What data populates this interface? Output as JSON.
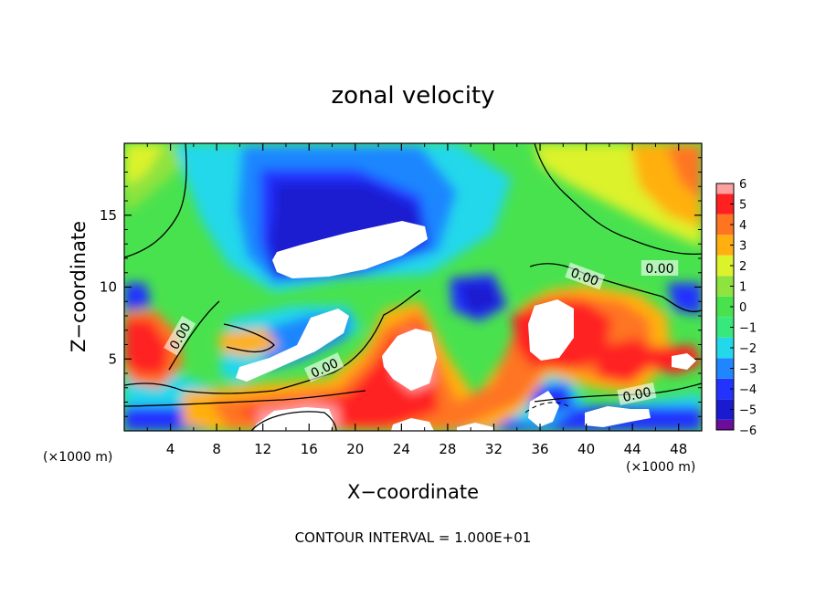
{
  "chart_data": {
    "type": "heatmap",
    "title": "zonal velocity",
    "xlabel": "X−coordinate",
    "ylabel": "Z−coordinate",
    "x_unit_left": "(×1000 m)",
    "x_unit_right": "(×1000 m)",
    "xlim": [
      0,
      50
    ],
    "ylim": [
      0,
      20
    ],
    "x_ticks": [
      4,
      8,
      12,
      16,
      20,
      24,
      28,
      32,
      36,
      40,
      44,
      48
    ],
    "y_ticks": [
      5,
      10,
      15
    ],
    "colorbar": {
      "ticks": [
        "6",
        "5",
        "4",
        "3",
        "2",
        "1",
        "0",
        "−1",
        "−2",
        "−3",
        "−4",
        "−5",
        "−6"
      ],
      "range": [
        -6,
        6
      ],
      "colors": {
        "-6": "#6a0d9b",
        "-5": "#1a1ad0",
        "-4": "#2233ff",
        "-3": "#1f86ff",
        "-2": "#22d8ea",
        "-1": "#37e87d",
        "0": "#49e24f",
        "1": "#8ee33e",
        "2": "#dcf22b",
        "3": "#ffb010",
        "4": "#ff7420",
        "5": "#ff2020",
        "6": "#ffa0a0"
      }
    },
    "contour_labels": [
      "0.00",
      "0.00",
      "0.00",
      "0.00",
      "0.00"
    ],
    "footer": "CONTOUR INTERVAL = 1.000E+01"
  }
}
